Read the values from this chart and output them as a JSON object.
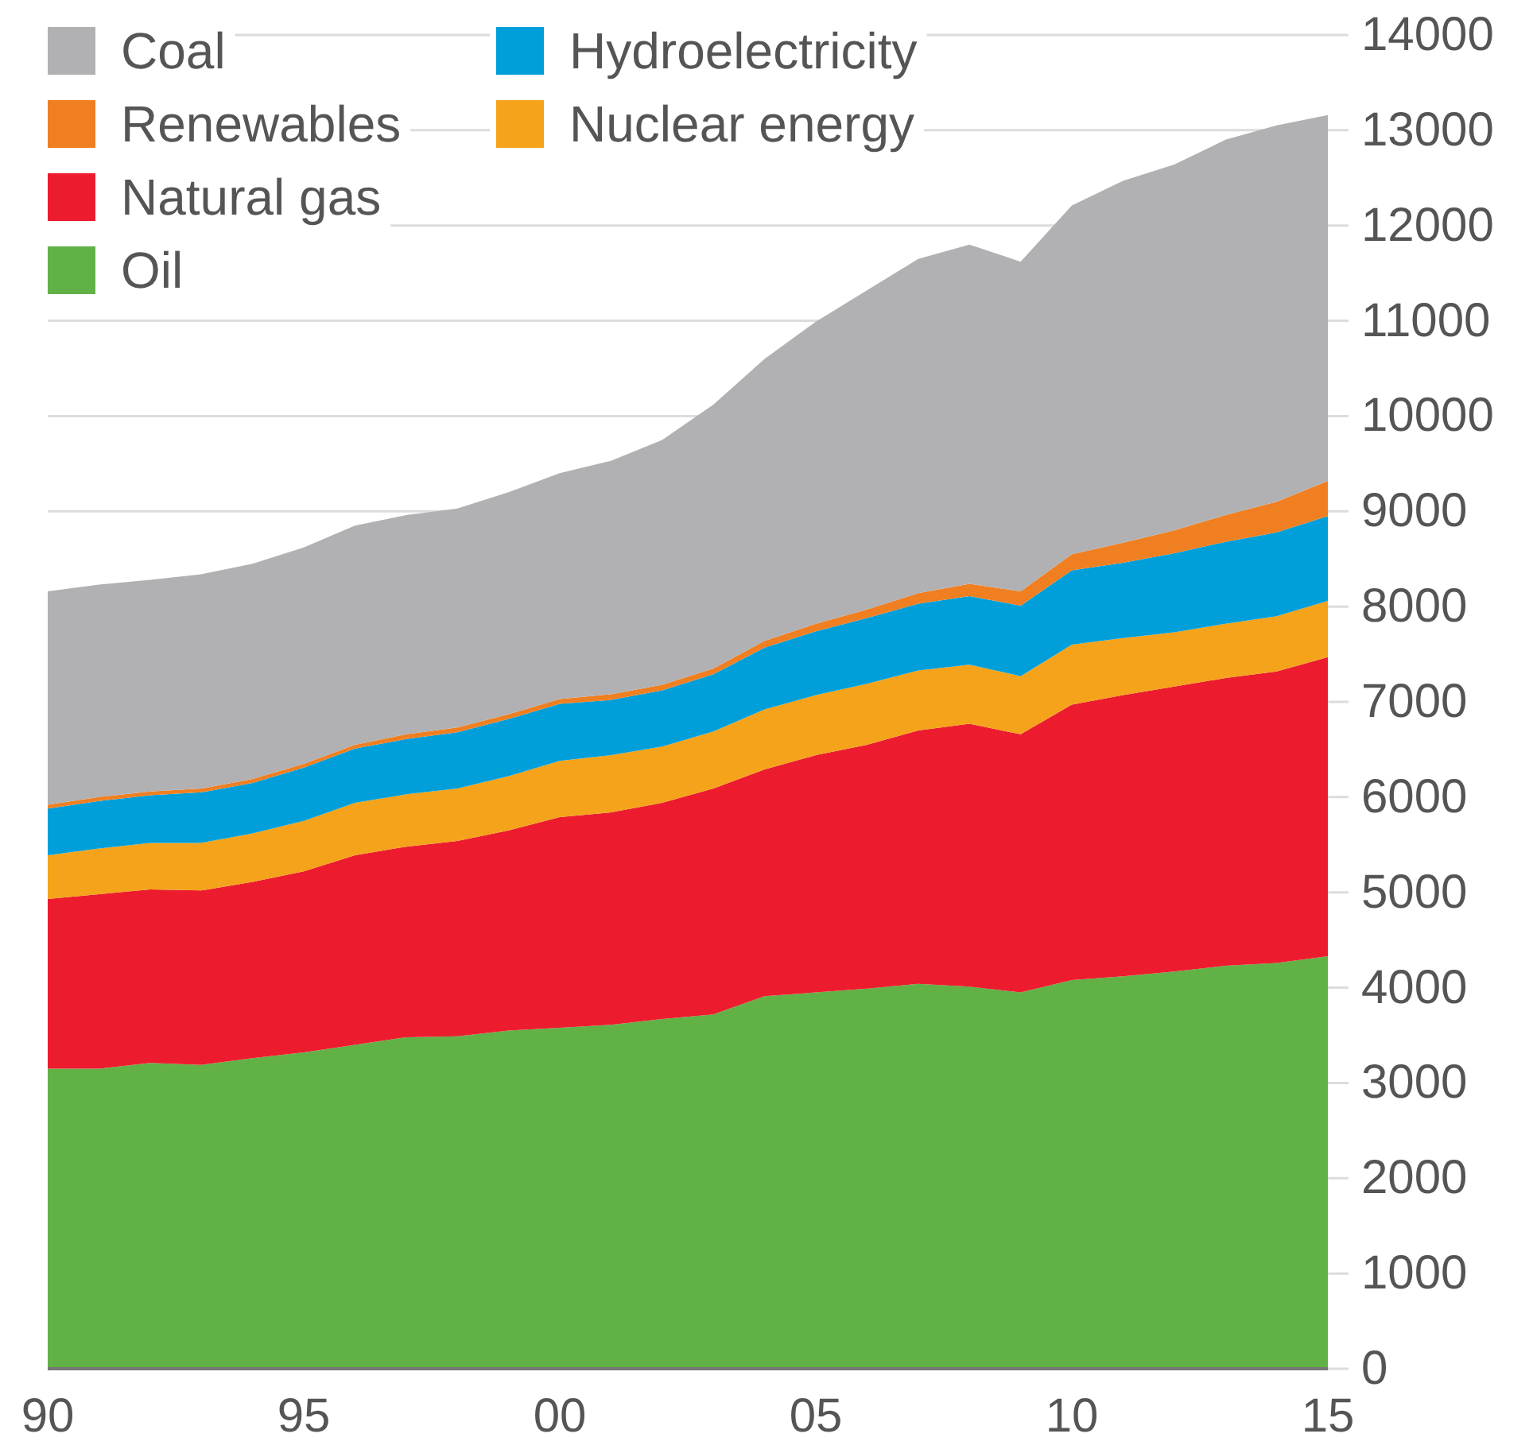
{
  "chart_data": {
    "type": "area",
    "stacked": true,
    "grid": "y",
    "legend": "top left",
    "x": [
      1990,
      1991,
      1992,
      1993,
      1994,
      1995,
      1996,
      1997,
      1998,
      1999,
      2000,
      2001,
      2002,
      2003,
      2004,
      2005,
      2006,
      2007,
      2008,
      2009,
      2010,
      2011,
      2012,
      2013,
      2014,
      2015
    ],
    "series": [
      {
        "name": "Oil",
        "color": "#62b146",
        "values": [
          3150,
          3150,
          3210,
          3190,
          3260,
          3320,
          3400,
          3480,
          3490,
          3550,
          3580,
          3610,
          3670,
          3720,
          3910,
          3950,
          3990,
          4040,
          4010,
          3950,
          4080,
          4120,
          4170,
          4230,
          4260,
          4330
        ]
      },
      {
        "name": "Natural gas",
        "color": "#ec1c2e",
        "values": [
          1780,
          1830,
          1820,
          1830,
          1850,
          1900,
          1990,
          2000,
          2050,
          2100,
          2210,
          2230,
          2270,
          2370,
          2380,
          2490,
          2560,
          2660,
          2760,
          2710,
          2890,
          2950,
          2990,
          3020,
          3060,
          3140
        ]
      },
      {
        "name": "Nuclear energy",
        "color": "#f5a31a",
        "values": [
          460,
          480,
          490,
          500,
          510,
          530,
          550,
          550,
          550,
          570,
          590,
          600,
          590,
          600,
          630,
          630,
          640,
          630,
          620,
          610,
          630,
          600,
          570,
          570,
          580,
          590
        ]
      },
      {
        "name": "Hydroelectricity",
        "color": "#009fda",
        "values": [
          490,
          500,
          500,
          530,
          530,
          560,
          570,
          580,
          590,
          600,
          600,
          580,
          590,
          600,
          650,
          670,
          690,
          700,
          720,
          740,
          780,
          790,
          830,
          860,
          880,
          890
        ]
      },
      {
        "name": "Renewables",
        "color": "#f07f21",
        "values": [
          40,
          40,
          40,
          40,
          40,
          40,
          40,
          50,
          50,
          50,
          50,
          60,
          60,
          60,
          70,
          80,
          90,
          110,
          130,
          150,
          170,
          210,
          240,
          280,
          320,
          370
        ]
      },
      {
        "name": "Coal",
        "color": "#b1b1b3",
        "values": [
          2240,
          2230,
          2220,
          2250,
          2260,
          2270,
          2300,
          2300,
          2300,
          2330,
          2370,
          2450,
          2570,
          2770,
          2960,
          3170,
          3350,
          3510,
          3560,
          3460,
          3660,
          3800,
          3840,
          3940,
          3950,
          3840
        ]
      }
    ],
    "xlim": [
      1990,
      2015
    ],
    "xticks": [
      {
        "value": 1990,
        "label": "90"
      },
      {
        "value": 1995,
        "label": "95"
      },
      {
        "value": 2000,
        "label": "00"
      },
      {
        "value": 2005,
        "label": "05"
      },
      {
        "value": 2010,
        "label": "10"
      },
      {
        "value": 2015,
        "label": "15"
      }
    ],
    "ylim": [
      0,
      14000
    ],
    "yticks": [
      0,
      1000,
      2000,
      3000,
      4000,
      5000,
      6000,
      7000,
      8000,
      9000,
      10000,
      11000,
      12000,
      13000,
      14000
    ]
  }
}
